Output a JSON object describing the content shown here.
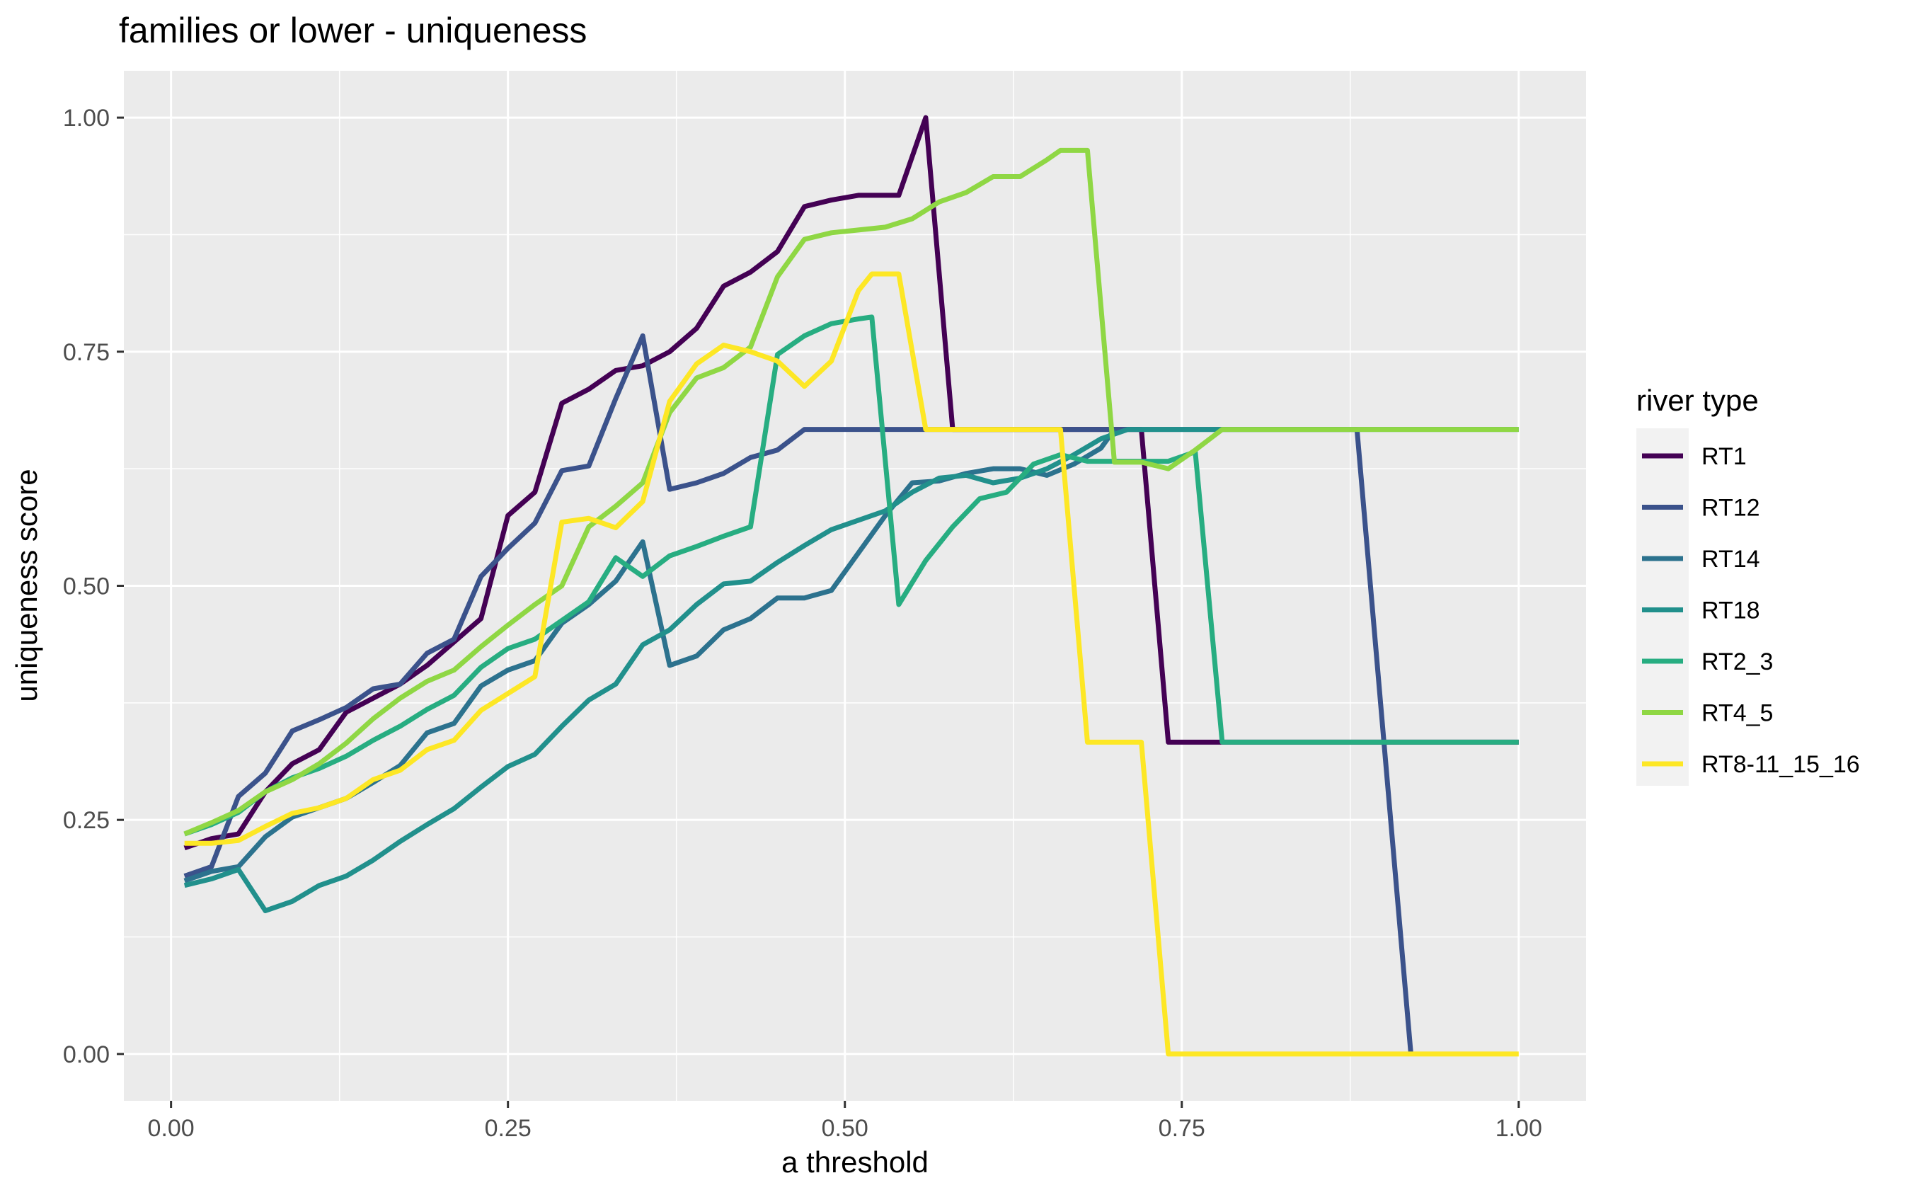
{
  "chart_data": {
    "type": "line",
    "title": "families or lower - uniqueness",
    "xlabel": "a threshold",
    "ylabel": "uniqueness score",
    "xlim": [
      -0.035,
      1.05
    ],
    "ylim": [
      -0.05,
      1.05
    ],
    "x_ticks": [
      0.0,
      0.25,
      0.5,
      0.75,
      1.0
    ],
    "x_tick_labels": [
      "0.00",
      "0.25",
      "0.50",
      "0.75",
      "1.00"
    ],
    "y_ticks": [
      0.0,
      0.25,
      0.5,
      0.75,
      1.0
    ],
    "y_tick_labels": [
      "0.00",
      "0.25",
      "0.50",
      "0.75",
      "1.00"
    ],
    "grid": true,
    "panel_background": "#EBEBEB",
    "legend": {
      "title": "river type",
      "position": "right"
    },
    "series": [
      {
        "name": "RT1",
        "color": "#440154",
        "x": [
          0.01,
          0.03,
          0.05,
          0.07,
          0.09,
          0.11,
          0.13,
          0.15,
          0.17,
          0.19,
          0.21,
          0.23,
          0.25,
          0.27,
          0.29,
          0.31,
          0.33,
          0.35,
          0.37,
          0.39,
          0.41,
          0.43,
          0.45,
          0.47,
          0.49,
          0.51,
          0.53,
          0.54,
          0.56,
          0.58,
          0.6,
          0.62,
          0.64,
          0.66,
          0.68,
          0.7,
          0.72,
          0.74,
          0.76,
          0.78,
          0.8,
          0.85,
          0.9,
          0.95,
          1.0
        ],
        "values": [
          0.22,
          0.23,
          0.235,
          0.28,
          0.31,
          0.325,
          0.365,
          0.38,
          0.395,
          0.415,
          0.44,
          0.465,
          0.575,
          0.6,
          0.695,
          0.71,
          0.73,
          0.735,
          0.75,
          0.775,
          0.82,
          0.835,
          0.857,
          0.905,
          0.912,
          0.917,
          0.917,
          0.917,
          1.0,
          0.667,
          0.667,
          0.667,
          0.667,
          0.667,
          0.667,
          0.667,
          0.667,
          0.333,
          0.333,
          0.333,
          0.333,
          0.333,
          0.333,
          0.333,
          0.333
        ]
      },
      {
        "name": "RT12",
        "color": "#3B528B",
        "x": [
          0.01,
          0.03,
          0.05,
          0.07,
          0.09,
          0.11,
          0.13,
          0.15,
          0.17,
          0.19,
          0.21,
          0.23,
          0.25,
          0.27,
          0.29,
          0.31,
          0.33,
          0.35,
          0.37,
          0.39,
          0.41,
          0.43,
          0.45,
          0.47,
          0.49,
          0.51,
          0.53,
          0.55,
          0.6,
          0.65,
          0.7,
          0.75,
          0.8,
          0.85,
          0.88,
          0.9,
          0.92
        ],
        "values": [
          0.19,
          0.2,
          0.275,
          0.3,
          0.345,
          0.357,
          0.37,
          0.39,
          0.395,
          0.428,
          0.443,
          0.51,
          0.54,
          0.567,
          0.623,
          0.628,
          0.7,
          0.767,
          0.603,
          0.61,
          0.62,
          0.637,
          0.645,
          0.667,
          0.667,
          0.667,
          0.667,
          0.667,
          0.667,
          0.667,
          0.667,
          0.667,
          0.667,
          0.667,
          0.667,
          0.333,
          0.0
        ]
      },
      {
        "name": "RT14",
        "color": "#2C728E",
        "x": [
          0.01,
          0.03,
          0.05,
          0.07,
          0.09,
          0.11,
          0.13,
          0.15,
          0.17,
          0.19,
          0.21,
          0.23,
          0.25,
          0.27,
          0.29,
          0.31,
          0.33,
          0.35,
          0.37,
          0.39,
          0.41,
          0.43,
          0.45,
          0.47,
          0.49,
          0.51,
          0.53,
          0.55,
          0.57,
          0.59,
          0.61,
          0.63,
          0.65,
          0.67,
          0.69,
          0.7
        ],
        "values": [
          0.185,
          0.195,
          0.2,
          0.232,
          0.253,
          0.263,
          0.273,
          0.29,
          0.308,
          0.343,
          0.353,
          0.393,
          0.41,
          0.42,
          0.46,
          0.48,
          0.505,
          0.547,
          0.415,
          0.425,
          0.453,
          0.465,
          0.487,
          0.487,
          0.495,
          0.535,
          0.575,
          0.61,
          0.612,
          0.62,
          0.625,
          0.625,
          0.618,
          0.63,
          0.647,
          0.667
        ]
      },
      {
        "name": "RT18",
        "color": "#21908C",
        "x": [
          0.01,
          0.03,
          0.05,
          0.07,
          0.09,
          0.11,
          0.13,
          0.15,
          0.17,
          0.19,
          0.21,
          0.23,
          0.25,
          0.27,
          0.29,
          0.31,
          0.33,
          0.35,
          0.37,
          0.39,
          0.41,
          0.43,
          0.45,
          0.47,
          0.49,
          0.51,
          0.53,
          0.55,
          0.57,
          0.59,
          0.61,
          0.63,
          0.65,
          0.67,
          0.69,
          0.71,
          0.75,
          0.8,
          0.85,
          0.9,
          0.95,
          1.0
        ],
        "values": [
          0.18,
          0.187,
          0.197,
          0.153,
          0.163,
          0.18,
          0.19,
          0.207,
          0.227,
          0.245,
          0.262,
          0.285,
          0.307,
          0.32,
          0.35,
          0.378,
          0.395,
          0.437,
          0.453,
          0.48,
          0.502,
          0.505,
          0.525,
          0.543,
          0.56,
          0.57,
          0.58,
          0.6,
          0.615,
          0.618,
          0.61,
          0.615,
          0.625,
          0.64,
          0.657,
          0.667,
          0.667,
          0.667,
          0.667,
          0.667,
          0.667,
          0.667
        ]
      },
      {
        "name": "RT2_3",
        "color": "#27AD81",
        "x": [
          0.01,
          0.03,
          0.05,
          0.07,
          0.09,
          0.11,
          0.13,
          0.15,
          0.17,
          0.19,
          0.21,
          0.23,
          0.25,
          0.27,
          0.29,
          0.31,
          0.33,
          0.35,
          0.37,
          0.39,
          0.41,
          0.43,
          0.45,
          0.47,
          0.49,
          0.51,
          0.52,
          0.54,
          0.56,
          0.58,
          0.6,
          0.62,
          0.64,
          0.66,
          0.68,
          0.7,
          0.72,
          0.74,
          0.76,
          0.78,
          0.8,
          0.85,
          0.9,
          0.95,
          1.0
        ],
        "values": [
          0.235,
          0.245,
          0.258,
          0.28,
          0.295,
          0.305,
          0.318,
          0.335,
          0.35,
          0.368,
          0.383,
          0.413,
          0.433,
          0.443,
          0.463,
          0.483,
          0.53,
          0.51,
          0.532,
          0.542,
          0.553,
          0.563,
          0.747,
          0.767,
          0.78,
          0.785,
          0.787,
          0.48,
          0.527,
          0.563,
          0.593,
          0.6,
          0.63,
          0.64,
          0.633,
          0.633,
          0.633,
          0.633,
          0.643,
          0.333,
          0.333,
          0.333,
          0.333,
          0.333,
          0.333
        ]
      },
      {
        "name": "RT4_5",
        "color": "#8FD744",
        "x": [
          0.01,
          0.03,
          0.05,
          0.07,
          0.09,
          0.11,
          0.13,
          0.15,
          0.17,
          0.19,
          0.21,
          0.23,
          0.25,
          0.27,
          0.29,
          0.31,
          0.33,
          0.35,
          0.37,
          0.39,
          0.41,
          0.43,
          0.45,
          0.47,
          0.49,
          0.51,
          0.53,
          0.55,
          0.57,
          0.59,
          0.61,
          0.63,
          0.65,
          0.66,
          0.68,
          0.7,
          0.72,
          0.74,
          0.76,
          0.78,
          0.8,
          0.85,
          0.9,
          0.95,
          1.0
        ],
        "values": [
          0.235,
          0.247,
          0.26,
          0.28,
          0.293,
          0.31,
          0.332,
          0.358,
          0.38,
          0.398,
          0.41,
          0.435,
          0.458,
          0.48,
          0.5,
          0.563,
          0.585,
          0.61,
          0.685,
          0.722,
          0.733,
          0.755,
          0.83,
          0.87,
          0.877,
          0.88,
          0.883,
          0.892,
          0.91,
          0.92,
          0.937,
          0.937,
          0.955,
          0.965,
          0.965,
          0.632,
          0.632,
          0.625,
          0.645,
          0.667,
          0.667,
          0.667,
          0.667,
          0.667,
          0.667
        ]
      },
      {
        "name": "RT8-11_15_16",
        "color": "#FDE725",
        "x": [
          0.01,
          0.03,
          0.05,
          0.07,
          0.09,
          0.11,
          0.13,
          0.15,
          0.17,
          0.19,
          0.21,
          0.23,
          0.25,
          0.27,
          0.29,
          0.31,
          0.33,
          0.35,
          0.37,
          0.39,
          0.41,
          0.43,
          0.45,
          0.47,
          0.49,
          0.51,
          0.52,
          0.54,
          0.56,
          0.58,
          0.6,
          0.62,
          0.64,
          0.66,
          0.68,
          0.7,
          0.72,
          0.74,
          0.76,
          0.8,
          0.85,
          0.9,
          0.95,
          1.0
        ],
        "values": [
          0.225,
          0.225,
          0.228,
          0.243,
          0.257,
          0.263,
          0.273,
          0.293,
          0.303,
          0.325,
          0.335,
          0.367,
          0.385,
          0.403,
          0.568,
          0.572,
          0.562,
          0.59,
          0.697,
          0.737,
          0.757,
          0.75,
          0.74,
          0.713,
          0.74,
          0.815,
          0.833,
          0.833,
          0.667,
          0.667,
          0.667,
          0.667,
          0.667,
          0.667,
          0.333,
          0.333,
          0.333,
          0.0,
          0.0,
          0.0,
          0.0,
          0.0,
          0.0,
          0.0
        ]
      }
    ]
  }
}
